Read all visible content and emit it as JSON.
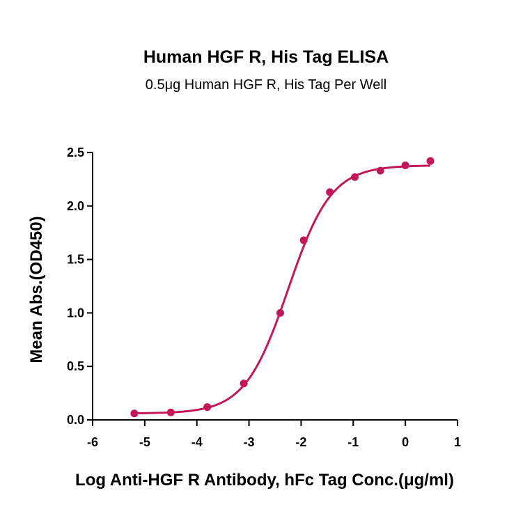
{
  "chart_data": {
    "type": "scatter",
    "title": "Human HGF R, His Tag ELISA",
    "subtitle": "0.5μg Human HGF R, His Tag Per Well",
    "xlabel": "Log Anti-HGF R Antibody, hFc Tag Conc.(μg/ml)",
    "ylabel": "Mean Abs.(OD450)",
    "xlim": [
      -6,
      1
    ],
    "ylim": [
      0,
      2.5
    ],
    "x_ticks": [
      "-6",
      "-5",
      "-4",
      "-3",
      "-2",
      "-1",
      "0",
      "1"
    ],
    "y_ticks": [
      "0.0",
      "0.5",
      "1.0",
      "1.5",
      "2.0",
      "2.5"
    ],
    "grid": false,
    "color": "#c2185b",
    "series": [
      {
        "x": [
          -5.2,
          -4.5,
          -3.8,
          -3.1,
          -2.4,
          -1.95,
          -1.45,
          -0.97,
          -0.48,
          0.0,
          0.48
        ],
        "y": [
          0.06,
          0.07,
          0.12,
          0.34,
          1.0,
          1.68,
          2.13,
          2.27,
          2.33,
          2.38,
          2.42
        ]
      }
    ],
    "fit": {
      "bottom": 0.06,
      "top": 2.38,
      "log_ec50": -2.25,
      "hill": 1.05
    }
  }
}
